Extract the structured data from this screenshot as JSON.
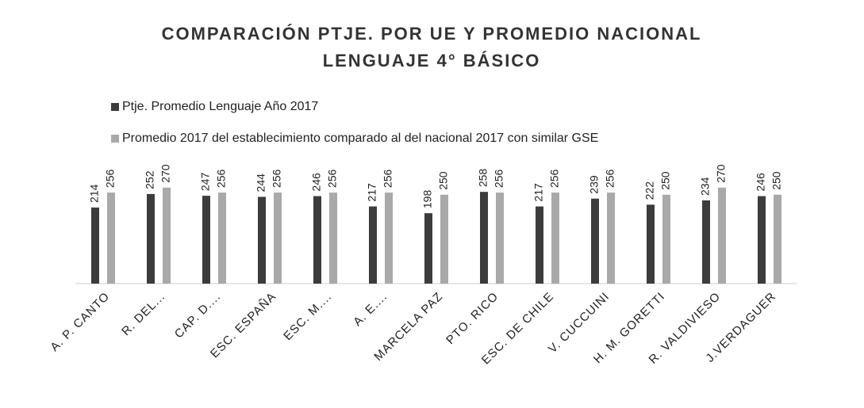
{
  "chart_data": {
    "type": "bar",
    "title": [
      "COMPARACIÓN PTJE. POR UE Y PROMEDIO NACIONAL",
      "LENGUAJE 4° BÁSICO"
    ],
    "categories": [
      "A. P. CANTO",
      "R. DEL...",
      "CAP. D....",
      "ESC. ESPAÑA",
      "ESC. M....",
      "A. E....",
      "MARCELA PAZ",
      "PTO. RICO",
      "ESC. DE CHILE",
      "V. CUCCUINI",
      "H. M. GORETTI",
      "R. VALDIVIESO",
      "J.VERDAGUER"
    ],
    "series": [
      {
        "name": "Ptje. Promedio Lenguaje Año 2017",
        "color": "#3c3c3c",
        "values": [
          214,
          252,
          247,
          244,
          246,
          217,
          198,
          258,
          217,
          239,
          222,
          234,
          246
        ]
      },
      {
        "name": "Promedio 2017 del establecimiento comparado al del nacional 2017 con similar GSE",
        "color": "#a9a9a9",
        "values": [
          256,
          270,
          256,
          256,
          256,
          256,
          250,
          256,
          256,
          256,
          250,
          270,
          250
        ]
      }
    ],
    "ylim": [
      0,
      450
    ],
    "legend": "top-left"
  }
}
